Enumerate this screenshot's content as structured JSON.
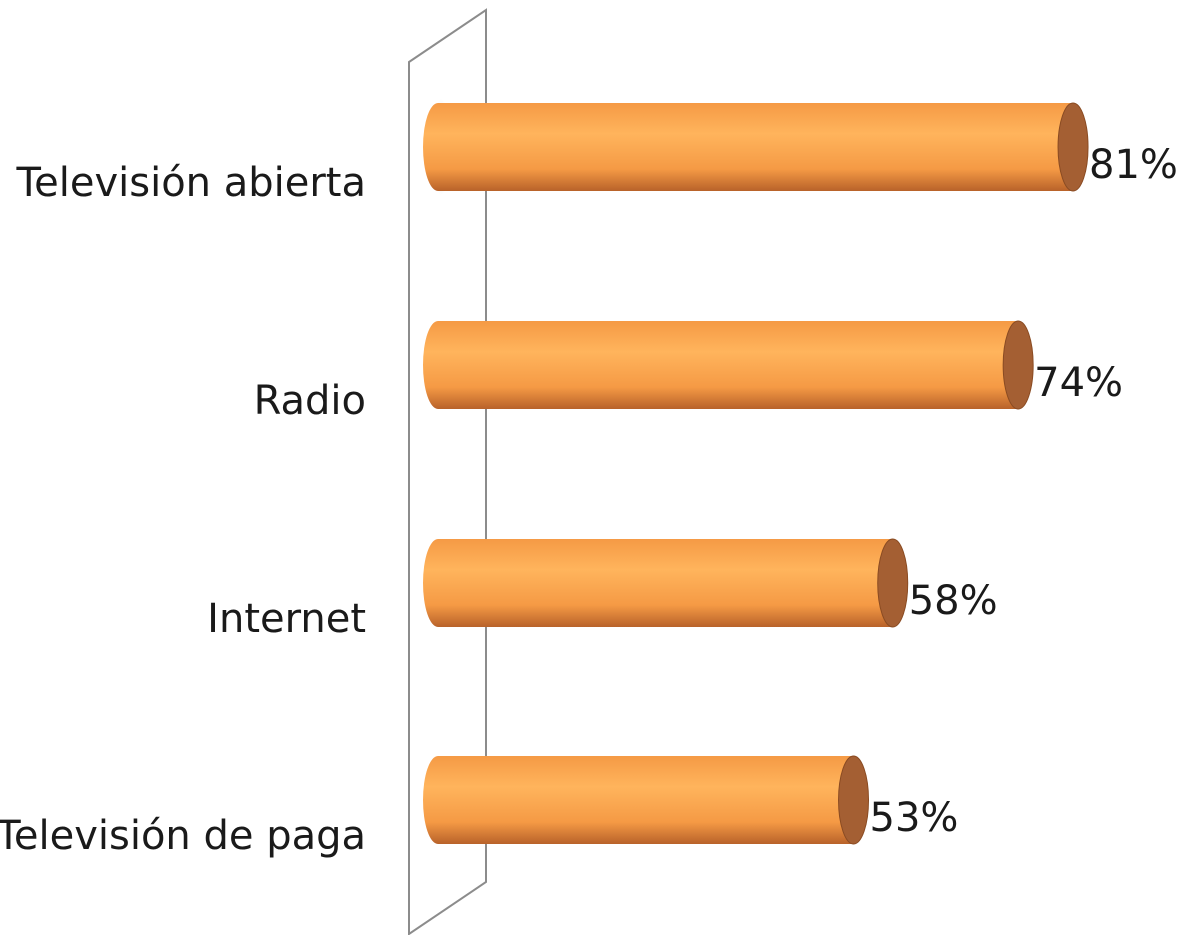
{
  "chart_data": {
    "type": "bar",
    "orientation": "horizontal",
    "style": "3d-cylinder",
    "categories": [
      "Televisión abierta",
      "Radio",
      "Internet",
      "Televisión de paga"
    ],
    "values": [
      81,
      74,
      58,
      53
    ],
    "value_labels": [
      "81%",
      "74%",
      "58%",
      "53%"
    ],
    "unit": "%",
    "title": "",
    "xlabel": "",
    "ylabel": "",
    "xlim": [
      0,
      100
    ],
    "grid": false,
    "legend": "none",
    "colors": {
      "bar_light": "#FFB45C",
      "bar_mid": "#F59A45",
      "bar_dark": "#B8622A",
      "bar_cap": "#A45F33",
      "bar_cap_edge": "#8A4B22",
      "wall_stroke": "#8C8C8C"
    }
  }
}
